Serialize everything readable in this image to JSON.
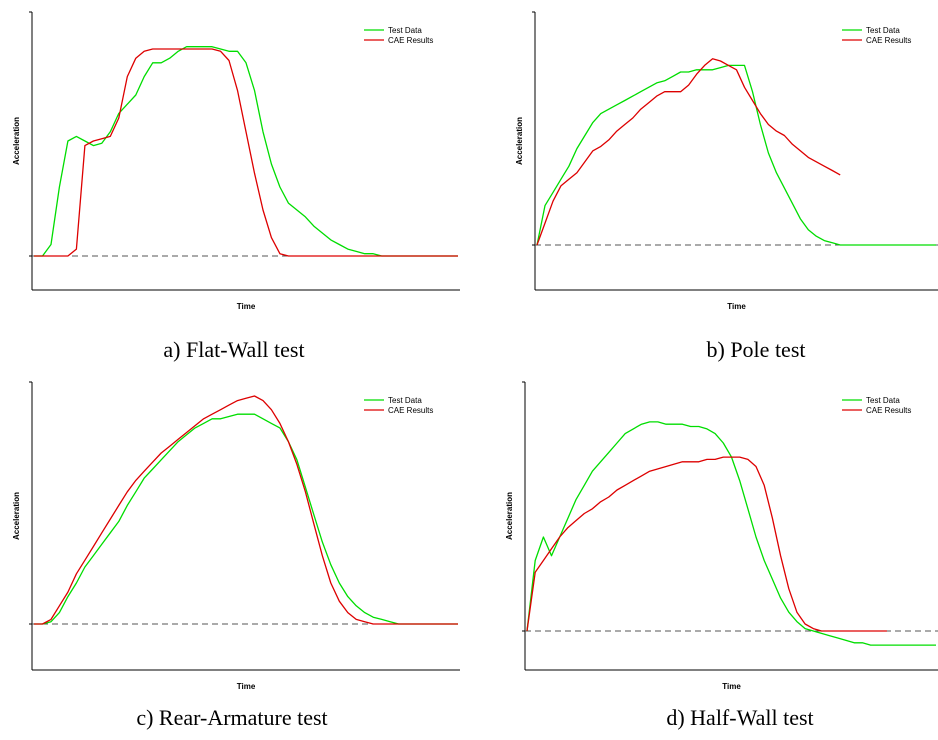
{
  "chart_data": [
    {
      "type": "line",
      "caption": "a) Flat-Wall test",
      "xlabel": "Time",
      "ylabel": "Acceleration",
      "legend": {
        "position": "top-right"
      },
      "xlim": [
        0,
        100
      ],
      "ylim": [
        -15,
        100
      ],
      "series": [
        {
          "name": "Test Data",
          "color": "#00dd00",
          "x": [
            0,
            2,
            4,
            6,
            8,
            10,
            12,
            14,
            16,
            18,
            20,
            22,
            24,
            26,
            28,
            30,
            32,
            34,
            36,
            38,
            40,
            42,
            44,
            46,
            48,
            50,
            52,
            54,
            56,
            58,
            60,
            62,
            64,
            66,
            68,
            70,
            72,
            74,
            76,
            78,
            80,
            82,
            84,
            86,
            88,
            90,
            92,
            94,
            96,
            98,
            100
          ],
          "y": [
            0,
            0,
            5,
            30,
            50,
            52,
            50,
            48,
            49,
            54,
            62,
            66,
            70,
            78,
            84,
            84,
            86,
            89,
            91,
            91,
            91,
            91,
            90,
            89,
            89,
            84,
            72,
            54,
            40,
            30,
            23,
            20,
            17,
            13,
            10,
            7,
            5,
            3,
            2,
            1,
            1,
            0,
            0,
            0,
            0,
            0,
            0,
            0,
            0,
            0,
            0
          ]
        },
        {
          "name": "CAE Results",
          "color": "#dd0000",
          "x": [
            0,
            2,
            4,
            6,
            8,
            10,
            12,
            14,
            16,
            18,
            20,
            22,
            24,
            26,
            28,
            30,
            32,
            34,
            36,
            38,
            40,
            42,
            44,
            46,
            48,
            50,
            52,
            54,
            56,
            58,
            60,
            62,
            64,
            66,
            68,
            70,
            72,
            74,
            76,
            78,
            80,
            82,
            84,
            86,
            88,
            90,
            92,
            94,
            96,
            98,
            100
          ],
          "y": [
            0,
            0,
            0,
            0,
            0,
            3,
            48,
            50,
            51,
            52,
            60,
            78,
            86,
            89,
            90,
            90,
            90,
            90,
            90,
            90,
            90,
            90,
            89,
            85,
            72,
            54,
            36,
            20,
            8,
            1,
            0,
            0,
            0,
            0,
            0,
            0,
            0,
            0,
            0,
            0,
            0,
            0,
            0,
            0,
            0,
            0,
            0,
            0,
            0,
            0,
            0
          ]
        }
      ]
    },
    {
      "type": "line",
      "caption": "b) Pole test",
      "xlabel": "Time",
      "ylabel": "Acceleration",
      "legend": {
        "position": "top-right"
      },
      "xlim": [
        0,
        100
      ],
      "ylim": [
        -20,
        100
      ],
      "series": [
        {
          "name": "Test Data",
          "color": "#00dd00",
          "x": [
            0,
            2,
            4,
            6,
            8,
            10,
            12,
            14,
            16,
            18,
            20,
            22,
            24,
            26,
            28,
            30,
            32,
            34,
            36,
            38,
            40,
            42,
            44,
            46,
            48,
            50,
            52,
            54,
            56,
            58,
            60,
            62,
            64,
            66,
            68,
            70,
            72,
            74,
            76,
            78,
            80,
            82,
            84,
            86,
            88,
            90,
            92,
            94,
            96,
            98,
            100
          ],
          "y": [
            0,
            18,
            24,
            30,
            36,
            44,
            50,
            56,
            60,
            62,
            64,
            66,
            68,
            70,
            72,
            74,
            75,
            77,
            79,
            79,
            80,
            80,
            80,
            81,
            82,
            82,
            82,
            70,
            55,
            42,
            33,
            26,
            19,
            12,
            7,
            4,
            2,
            1,
            0,
            0,
            0,
            0,
            0,
            0,
            0,
            0,
            0,
            0,
            0,
            0,
            0
          ]
        },
        {
          "name": "CAE Results",
          "color": "#dd0000",
          "x": [
            0,
            2,
            4,
            6,
            8,
            10,
            12,
            14,
            16,
            18,
            20,
            22,
            24,
            26,
            28,
            30,
            32,
            34,
            36,
            38,
            40,
            42,
            44,
            46,
            48,
            50,
            52,
            54,
            56,
            58,
            60,
            62,
            64,
            66,
            68,
            70,
            72,
            74,
            76
          ],
          "y": [
            0,
            10,
            20,
            27,
            30,
            33,
            38,
            43,
            45,
            48,
            52,
            55,
            58,
            62,
            65,
            68,
            70,
            70,
            70,
            73,
            78,
            82,
            85,
            84,
            82,
            80,
            72,
            66,
            60,
            55,
            52,
            50,
            46,
            43,
            40,
            38,
            36,
            34,
            32
          ]
        }
      ]
    },
    {
      "type": "line",
      "caption": "c) Rear-Armature test",
      "xlabel": "Time",
      "ylabel": "Acceleration",
      "legend": {
        "position": "top-right"
      },
      "xlim": [
        0,
        100
      ],
      "ylim": [
        -15,
        100
      ],
      "series": [
        {
          "name": "Test Data",
          "color": "#00dd00",
          "x": [
            0,
            2,
            4,
            6,
            8,
            10,
            12,
            14,
            16,
            18,
            20,
            22,
            24,
            26,
            28,
            30,
            32,
            34,
            36,
            38,
            40,
            42,
            44,
            46,
            48,
            50,
            52,
            54,
            56,
            58,
            60,
            62,
            64,
            66,
            68,
            70,
            72,
            74,
            76,
            78,
            80,
            82,
            84,
            86,
            88,
            90,
            92,
            94,
            96,
            98,
            100
          ],
          "y": [
            0,
            0,
            1,
            5,
            12,
            18,
            25,
            30,
            35,
            40,
            45,
            52,
            58,
            64,
            68,
            72,
            76,
            80,
            83,
            86,
            88,
            90,
            90,
            91,
            92,
            92,
            92,
            90,
            88,
            86,
            80,
            72,
            60,
            48,
            36,
            26,
            18,
            12,
            8,
            5,
            3,
            2,
            1,
            0,
            0,
            0,
            0,
            0,
            0,
            0,
            0
          ]
        },
        {
          "name": "CAE Results",
          "color": "#dd0000",
          "x": [
            0,
            2,
            4,
            6,
            8,
            10,
            12,
            14,
            16,
            18,
            20,
            22,
            24,
            26,
            28,
            30,
            32,
            34,
            36,
            38,
            40,
            42,
            44,
            46,
            48,
            50,
            52,
            54,
            56,
            58,
            60,
            62,
            64,
            66,
            68,
            70,
            72,
            74,
            76,
            78,
            80,
            82,
            84,
            86,
            88,
            90,
            92,
            94,
            96,
            98,
            100
          ],
          "y": [
            0,
            0,
            2,
            8,
            14,
            22,
            28,
            34,
            40,
            46,
            52,
            58,
            63,
            67,
            71,
            75,
            78,
            81,
            84,
            87,
            90,
            92,
            94,
            96,
            98,
            99,
            100,
            98,
            94,
            88,
            80,
            70,
            58,
            44,
            30,
            18,
            10,
            5,
            2,
            1,
            0,
            0,
            0,
            0,
            0,
            0,
            0,
            0,
            0,
            0,
            0
          ]
        }
      ]
    },
    {
      "type": "line",
      "caption": "d) Half-Wall test",
      "xlabel": "Time",
      "ylabel": "Acceleration",
      "legend": {
        "position": "top-right"
      },
      "xlim": [
        0,
        100
      ],
      "ylim": [
        -10,
        100
      ],
      "series": [
        {
          "name": "Test Data",
          "color": "#00dd00",
          "x": [
            0,
            2,
            4,
            6,
            8,
            10,
            12,
            14,
            16,
            18,
            20,
            22,
            24,
            26,
            28,
            30,
            32,
            34,
            36,
            38,
            40,
            42,
            44,
            46,
            48,
            50,
            52,
            54,
            56,
            58,
            60,
            62,
            64,
            66,
            68,
            70,
            72,
            74,
            76,
            78,
            80,
            82,
            84,
            86,
            88,
            90,
            92,
            94,
            96,
            98,
            100
          ],
          "y": [
            0,
            30,
            40,
            32,
            40,
            48,
            56,
            62,
            68,
            72,
            76,
            80,
            84,
            86,
            88,
            89,
            89,
            88,
            88,
            88,
            87,
            87,
            86,
            84,
            80,
            74,
            64,
            52,
            40,
            30,
            22,
            14,
            8,
            4,
            1,
            0,
            -1,
            -2,
            -3,
            -4,
            -5,
            -5,
            -6,
            -6,
            -6,
            -6,
            -6,
            -6,
            -6,
            -6,
            -6
          ]
        },
        {
          "name": "CAE Results",
          "color": "#dd0000",
          "x": [
            0,
            2,
            4,
            6,
            8,
            10,
            12,
            14,
            16,
            18,
            20,
            22,
            24,
            26,
            28,
            30,
            32,
            34,
            36,
            38,
            40,
            42,
            44,
            46,
            48,
            50,
            52,
            54,
            56,
            58,
            60,
            62,
            64,
            66,
            68,
            70,
            72,
            74,
            76,
            78,
            80,
            82,
            84,
            86,
            88
          ],
          "y": [
            0,
            25,
            30,
            35,
            40,
            44,
            47,
            50,
            52,
            55,
            57,
            60,
            62,
            64,
            66,
            68,
            69,
            70,
            71,
            72,
            72,
            72,
            73,
            73,
            74,
            74,
            74,
            73,
            70,
            62,
            48,
            32,
            18,
            8,
            3,
            1,
            0,
            0,
            0,
            0,
            0,
            0,
            0,
            0,
            0
          ]
        }
      ]
    }
  ]
}
